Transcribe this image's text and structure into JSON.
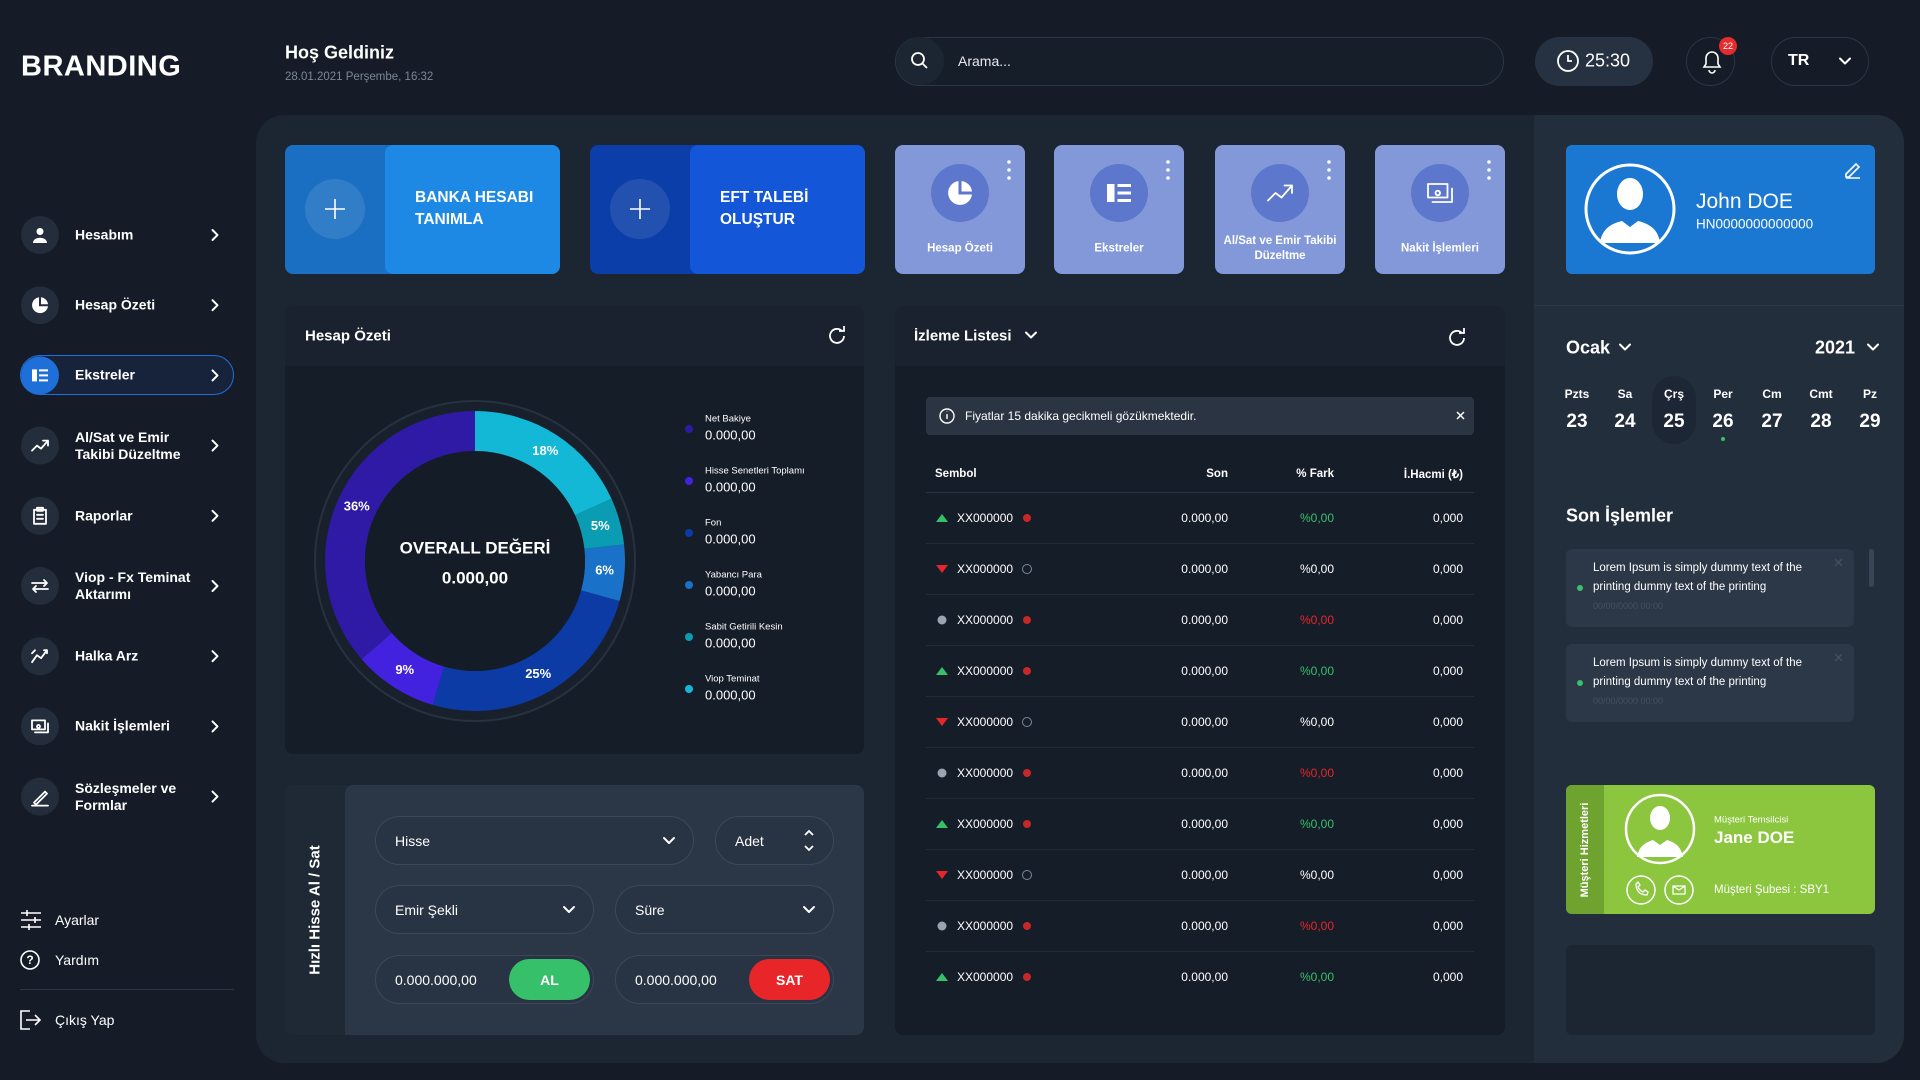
{
  "sidebar": {
    "brand": "BRANDING",
    "menu": [
      "Hesabım",
      "Hesap Özeti",
      "Ekstreler",
      "Al/Sat ve Emir Takibi Düzeltme",
      "Raporlar",
      "Viop - Fx Teminat Aktarımı",
      "Halka Arz",
      "Nakit İşlemleri",
      "Sözleşmeler ve Formlar"
    ],
    "active": 2,
    "footer": [
      "Ayarlar",
      "Yardım",
      "Çıkış Yap"
    ]
  },
  "header": {
    "title": "Hoş Geldiniz",
    "date": "28.01.2021 Perşembe, 16:32",
    "search_placeholder": "Arama...",
    "timer": "25:30",
    "notifications": "22",
    "language": "TR"
  },
  "quick_actions": {
    "large": [
      "BANKA HESABI TANIMLA",
      "EFT TALEBİ OLUŞTUR"
    ],
    "small": [
      "Hesap Özeti",
      "Ekstreler",
      "Al/Sat ve Emir Takibi Düzeltme",
      "Nakit İşlemleri"
    ]
  },
  "profile": {
    "name": "John DOE",
    "id": "HN0000000000000"
  },
  "account_summary": {
    "title": "Hesap Özeti",
    "center_label": "OVERALL DEĞERİ",
    "center_value": "0.000,00",
    "legend_values": [
      "0.000,00",
      "0.000,00",
      "0.000,00",
      "0.000,00",
      "0.000,00",
      "0.000,00"
    ]
  },
  "chart_data": {
    "type": "donut",
    "categories": [
      "Net Bakiye",
      "Hisse Senetleri Toplamı",
      "Fon",
      "Yabancı Para",
      "Sabit Getirili Kesin",
      "Viop Teminat"
    ],
    "values": [
      36,
      9,
      25,
      6,
      5,
      18
    ],
    "value_labels": [
      "36%",
      "9%",
      "25%",
      "6%",
      "5%",
      "18%"
    ],
    "colors": [
      "#2f1aa6",
      "#4322df",
      "#0c3ba6",
      "#1a72c8",
      "#0a9cb2",
      "#12b8d6"
    ]
  },
  "quick_trade": {
    "title": "Hızlı Hisse Al / Sat",
    "stock": "Hisse",
    "quantity": "Adet",
    "order_type": "Emir Şekli",
    "duration": "Süre",
    "buy_price": "0.000.000,00",
    "buy": "AL",
    "sell_price": "0.000.000,00",
    "sell": "SAT"
  },
  "watchlist": {
    "title": "İzleme Listesi",
    "notice": "Fiyatlar 15 dakika gecikmeli gözükmektedir.",
    "columns": [
      "Sembol",
      "Son",
      "% Fark",
      "İ.Hacmi (₺)"
    ],
    "rows": [
      {
        "symbol": "XX000000",
        "last": "0.000,00",
        "change": "%0,00",
        "volume": "0,000",
        "trend": "up"
      },
      {
        "symbol": "XX000000",
        "last": "0.000,00",
        "change": "%0,00",
        "volume": "0,000",
        "trend": "down"
      },
      {
        "symbol": "XX000000",
        "last": "0.000,00",
        "change": "%0,00",
        "volume": "0,000",
        "trend": "flat"
      },
      {
        "symbol": "XX000000",
        "last": "0.000,00",
        "change": "%0,00",
        "volume": "0,000",
        "trend": "up"
      },
      {
        "symbol": "XX000000",
        "last": "0.000,00",
        "change": "%0,00",
        "volume": "0,000",
        "trend": "down"
      },
      {
        "symbol": "XX000000",
        "last": "0.000,00",
        "change": "%0,00",
        "volume": "0,000",
        "trend": "flat"
      },
      {
        "symbol": "XX000000",
        "last": "0.000,00",
        "change": "%0,00",
        "volume": "0,000",
        "trend": "up"
      },
      {
        "symbol": "XX000000",
        "last": "0.000,00",
        "change": "%0,00",
        "volume": "0,000",
        "trend": "down"
      },
      {
        "symbol": "XX000000",
        "last": "0.000,00",
        "change": "%0,00",
        "volume": "0,000",
        "trend": "flat"
      },
      {
        "symbol": "XX000000",
        "last": "0.000,00",
        "change": "%0,00",
        "volume": "0,000",
        "trend": "up"
      }
    ]
  },
  "calendar": {
    "month": "Ocak",
    "year": "2021",
    "days": [
      {
        "name": "Pzts",
        "date": "23"
      },
      {
        "name": "Sa",
        "date": "24"
      },
      {
        "name": "Çrş",
        "date": "25"
      },
      {
        "name": "Per",
        "date": "26"
      },
      {
        "name": "Cm",
        "date": "27"
      },
      {
        "name": "Cmt",
        "date": "28"
      },
      {
        "name": "Pz",
        "date": "29"
      }
    ],
    "selected": 2,
    "marked": 3
  },
  "recent": {
    "title": "Son İşlemler",
    "items": [
      {
        "text": "Lorem Ipsum is simply dummy text of the printing dummy text of the printing",
        "date": "00/00/0000 00:00"
      },
      {
        "text": "Lorem Ipsum is simply dummy text of the printing dummy text of the printing",
        "date": "00/00/0000 00:00"
      }
    ]
  },
  "representative": {
    "side_label": "Müşteri Hizmetleri",
    "role": "Müşteri Temsilcisi",
    "name": "Jane DOE",
    "branch": "Müşteri Şubesi : SBY1"
  }
}
